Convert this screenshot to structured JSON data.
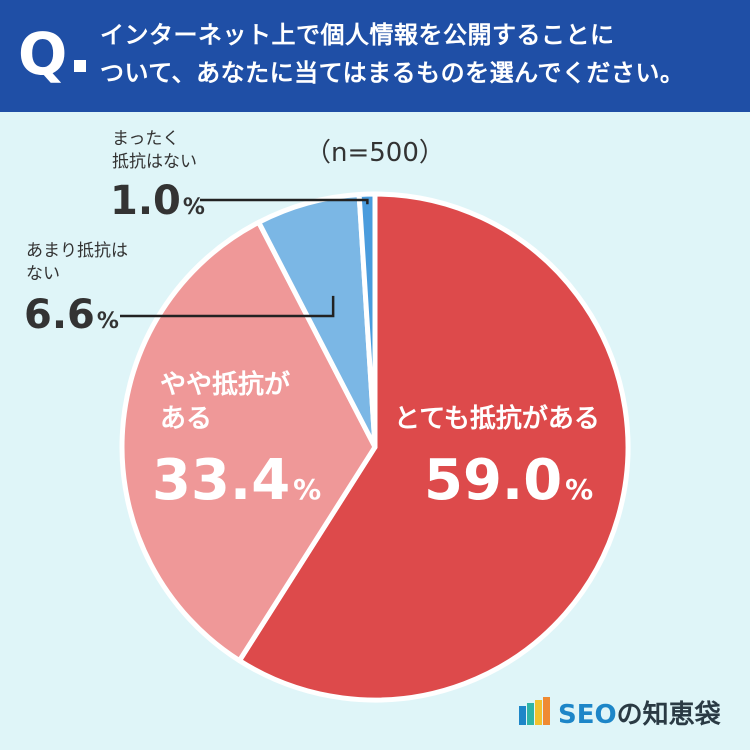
{
  "question": {
    "mark": "Q",
    "line1": "インターネット上で個人情報を公開することに",
    "line2": "ついて、あなたに当てはまるものを選んでください。"
  },
  "sample_size": "（n=500）",
  "brand": {
    "logo_text_prefix": "SEO",
    "logo_text_suffix": "の知恵袋",
    "logo_colors": [
      "#1d86c8",
      "#2fb4a6",
      "#f2c12e",
      "#ef8a32"
    ]
  },
  "colors": {
    "header_bg": "#1f4fa6",
    "page_bg": "#dff5f8",
    "slice_1": "#dd4a4b",
    "slice_2": "#ef9898",
    "slice_3": "#7bb7e5",
    "slice_4": "#4a9cdd"
  },
  "chart_data": {
    "type": "pie",
    "title": "インターネット上で個人情報を公開することについて、あなたに当てはまるものを選んでください。",
    "start_angle_deg": 0,
    "direction": "clockwise",
    "slices": [
      {
        "label": "とても抵抗がある",
        "value": 59.0,
        "display_value": "59.0",
        "unit": "%",
        "color": "#dd4a4b",
        "label_position": "inside"
      },
      {
        "label": "やや抵抗がある",
        "value": 33.4,
        "display_value": "33.4",
        "unit": "%",
        "color": "#ef9898",
        "label_position": "inside"
      },
      {
        "label": "あまり抵抗はない",
        "value": 6.6,
        "display_value": "6.6",
        "unit": "%",
        "color": "#7bb7e5",
        "label_position": "outside-left"
      },
      {
        "label": "まったく抵抗はない",
        "value": 1.0,
        "display_value": "1.0",
        "unit": "%",
        "color": "#4a9cdd",
        "label_position": "outside-left"
      }
    ]
  }
}
